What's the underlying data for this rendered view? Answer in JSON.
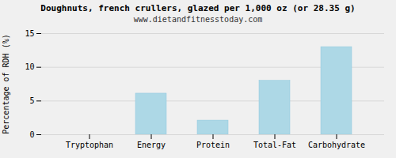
{
  "chart_data": {
    "type": "bar",
    "title": "Doughnuts, french crullers, glazed per 1,000 oz (or 28.35 g)",
    "subtitle": "www.dietandfitnesstoday.com",
    "categories": [
      "Tryptophan",
      "Energy",
      "Protein",
      "Total-Fat",
      "Carbohydrate"
    ],
    "values": [
      0,
      6.1,
      2.1,
      8.0,
      13.0
    ],
    "color": "#ADD8E6",
    "ylabel": "Percentage of RDH (%)",
    "ylim": [
      0,
      15
    ],
    "yticks": [
      0,
      5,
      10,
      15
    ],
    "grid": true
  }
}
